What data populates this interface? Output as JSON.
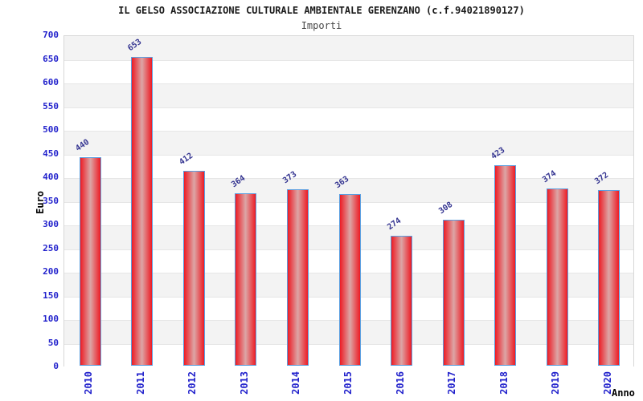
{
  "header": {
    "title": "IL GELSO ASSOCIAZIONE CULTURALE AMBIENTALE GERENZANO (c.f.94021890127)",
    "subtitle": "Importi"
  },
  "chart_data": {
    "type": "bar",
    "title": "IL GELSO ASSOCIAZIONE CULTURALE AMBIENTALE GERENZANO (c.f.94021890127)",
    "subtitle": "Importi",
    "categories": [
      "2010",
      "2011",
      "2012",
      "2013",
      "2014",
      "2015",
      "2016",
      "2017",
      "2018",
      "2019",
      "2020"
    ],
    "values": [
      440,
      653,
      412,
      364,
      373,
      363,
      274,
      308,
      423,
      374,
      372
    ],
    "xlabel": "Anno",
    "ylabel": "Euro",
    "ylim": [
      0,
      700
    ],
    "ytick_step": 50,
    "yticks": [
      0,
      50,
      100,
      150,
      200,
      250,
      300,
      350,
      400,
      450,
      500,
      550,
      600,
      650,
      700
    ],
    "grid": "horizontal alternating bands every 50",
    "legend": "none",
    "value_labels_rotation_deg": -35,
    "xtick_rotation_deg": -90
  },
  "colors": {
    "bar_edge_red": "#ed1b24",
    "bar_center": "#dca6a6",
    "bar_border_blue": "#5c9fe0",
    "tick_text_blue": "#2222cc",
    "value_label_navy": "#333390",
    "band_gray": "#f3f3f3",
    "band_white": "#ffffff",
    "grid_line": "#e6e6e6",
    "plot_border": "#d8d8d8",
    "title_color": "#1a1a1a",
    "subtitle_color": "#4a4a4a"
  }
}
